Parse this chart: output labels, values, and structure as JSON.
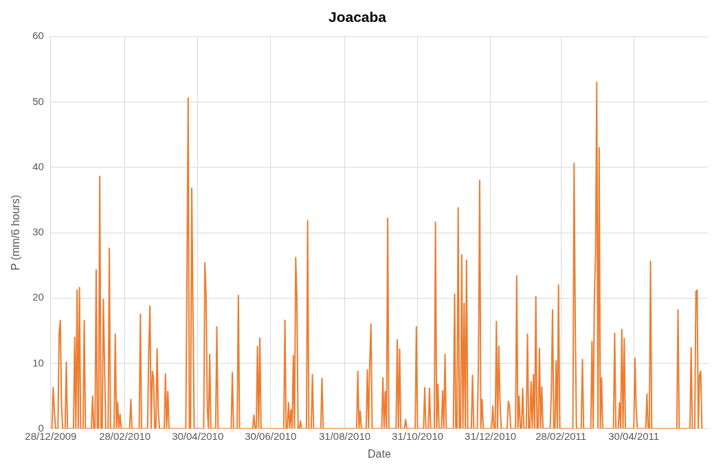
{
  "chart_data": {
    "type": "line",
    "title": "Joacaba",
    "xlabel": "Date",
    "ylabel": "P (mm/6 hours)",
    "xlim": [
      "2009-12-28",
      "2011-07-01"
    ],
    "xticks": [
      {
        "value": "2009-12-28",
        "label": "28/12/2009"
      },
      {
        "value": "2010-02-28",
        "label": "28/02/2010"
      },
      {
        "value": "2010-04-30",
        "label": "30/04/2010"
      },
      {
        "value": "2010-06-30",
        "label": "30/06/2010"
      },
      {
        "value": "2010-08-31",
        "label": "31/08/2010"
      },
      {
        "value": "2010-10-31",
        "label": "31/10/2010"
      },
      {
        "value": "2010-12-31",
        "label": "31/12/2010"
      },
      {
        "value": "2011-02-28",
        "label": "28/02/2011"
      },
      {
        "value": "2011-04-30",
        "label": "30/04/2011"
      }
    ],
    "ylim": [
      0,
      60
    ],
    "yticks": [
      0,
      10,
      20,
      30,
      40,
      50,
      60
    ],
    "grid": true,
    "legend": false,
    "marker": "none",
    "line_style": "solid",
    "series": [
      {
        "color": "#ed7d31",
        "x": [
          "2009-12-28",
          "2009-12-29",
          "2009-12-30",
          "2009-12-31",
          "2010-01-01",
          "2010-01-03",
          "2010-01-04",
          "2010-01-05",
          "2010-01-06",
          "2010-01-07",
          "2010-01-09",
          "2010-01-10",
          "2010-01-11",
          "2010-01-16",
          "2010-01-17",
          "2010-01-18",
          "2010-01-19",
          "2010-01-20",
          "2010-01-21",
          "2010-01-22",
          "2010-01-24",
          "2010-01-25",
          "2010-01-26",
          "2010-01-31",
          "2010-02-01",
          "2010-02-02",
          "2010-02-03",
          "2010-02-04",
          "2010-02-05",
          "2010-02-06",
          "2010-02-07",
          "2010-02-08",
          "2010-02-09",
          "2010-02-10",
          "2010-02-11",
          "2010-02-12",
          "2010-02-14",
          "2010-02-15",
          "2010-02-16",
          "2010-02-19",
          "2010-02-20",
          "2010-02-21",
          "2010-02-22",
          "2010-02-23",
          "2010-02-24",
          "2010-02-25",
          "2010-03-04",
          "2010-03-05",
          "2010-03-06",
          "2010-03-12",
          "2010-03-13",
          "2010-03-14",
          "2010-03-19",
          "2010-03-20",
          "2010-03-21",
          "2010-03-22",
          "2010-03-23",
          "2010-03-24",
          "2010-03-25",
          "2010-03-26",
          "2010-03-27",
          "2010-03-28",
          "2010-03-29",
          "2010-04-02",
          "2010-04-03",
          "2010-04-04",
          "2010-04-05",
          "2010-04-06",
          "2010-04-20",
          "2010-04-21",
          "2010-04-22",
          "2010-04-23",
          "2010-04-24",
          "2010-04-25",
          "2010-04-26",
          "2010-04-27",
          "2010-05-05",
          "2010-05-06",
          "2010-05-07",
          "2010-05-08",
          "2010-05-09",
          "2010-05-10",
          "2010-05-11",
          "2010-05-15",
          "2010-05-16",
          "2010-05-17",
          "2010-05-28",
          "2010-05-29",
          "2010-05-30",
          "2010-06-02",
          "2010-06-03",
          "2010-06-04",
          "2010-06-15",
          "2010-06-16",
          "2010-06-17",
          "2010-06-18",
          "2010-06-19",
          "2010-06-20",
          "2010-06-21",
          "2010-06-22",
          "2010-07-11",
          "2010-07-12",
          "2010-07-13",
          "2010-07-14",
          "2010-07-15",
          "2010-07-16",
          "2010-07-17",
          "2010-07-18",
          "2010-07-19",
          "2010-07-20",
          "2010-07-21",
          "2010-07-22",
          "2010-07-23",
          "2010-07-24",
          "2010-07-25",
          "2010-07-26",
          "2010-07-30",
          "2010-07-31",
          "2010-08-01",
          "2010-08-03",
          "2010-08-04",
          "2010-08-05",
          "2010-08-11",
          "2010-08-12",
          "2010-08-13",
          "2010-09-10",
          "2010-09-11",
          "2010-09-12",
          "2010-09-13",
          "2010-09-14",
          "2010-09-18",
          "2010-09-19",
          "2010-09-20",
          "2010-09-21",
          "2010-09-22",
          "2010-09-23",
          "2010-10-01",
          "2010-10-02",
          "2010-10-03",
          "2010-10-04",
          "2010-10-05",
          "2010-10-06",
          "2010-10-07",
          "2010-10-13",
          "2010-10-14",
          "2010-10-15",
          "2010-10-16",
          "2010-10-17",
          "2010-10-20",
          "2010-10-21",
          "2010-10-22",
          "2010-10-29",
          "2010-10-30",
          "2010-10-31",
          "2010-11-05",
          "2010-11-06",
          "2010-11-07",
          "2010-11-09",
          "2010-11-10",
          "2010-11-11",
          "2010-11-14",
          "2010-11-15",
          "2010-11-16",
          "2010-11-17",
          "2010-11-18",
          "2010-11-20",
          "2010-11-21",
          "2010-11-22",
          "2010-11-23",
          "2010-11-24",
          "2010-11-30",
          "2010-12-01",
          "2010-12-02",
          "2010-12-03",
          "2010-12-04",
          "2010-12-05",
          "2010-12-06",
          "2010-12-07",
          "2010-12-08",
          "2010-12-09",
          "2010-12-10",
          "2010-12-11",
          "2010-12-12",
          "2010-12-15",
          "2010-12-16",
          "2010-12-17",
          "2010-12-20",
          "2010-12-21",
          "2010-12-22",
          "2010-12-23",
          "2010-12-24",
          "2010-12-25",
          "2011-01-01",
          "2011-01-02",
          "2011-01-03",
          "2011-01-04",
          "2011-01-05",
          "2011-01-06",
          "2011-01-07",
          "2011-01-08",
          "2011-01-09",
          "2011-01-14",
          "2011-01-15",
          "2011-01-16",
          "2011-01-17",
          "2011-01-21",
          "2011-01-22",
          "2011-01-23",
          "2011-01-24",
          "2011-01-25",
          "2011-01-26",
          "2011-01-27",
          "2011-01-28",
          "2011-01-30",
          "2011-01-31",
          "2011-02-01",
          "2011-02-02",
          "2011-02-03",
          "2011-02-04",
          "2011-02-05",
          "2011-02-06",
          "2011-02-07",
          "2011-02-08",
          "2011-02-09",
          "2011-02-10",
          "2011-02-11",
          "2011-02-12",
          "2011-02-13",
          "2011-02-19",
          "2011-02-20",
          "2011-02-21",
          "2011-02-22",
          "2011-02-23",
          "2011-02-24",
          "2011-02-25",
          "2011-02-26",
          "2011-02-27",
          "2011-03-10",
          "2011-03-11",
          "2011-03-12",
          "2011-03-13",
          "2011-03-17",
          "2011-03-18",
          "2011-03-19",
          "2011-03-25",
          "2011-03-26",
          "2011-03-27",
          "2011-03-28",
          "2011-03-29",
          "2011-03-30",
          "2011-03-31",
          "2011-04-01",
          "2011-04-02",
          "2011-04-03",
          "2011-04-04",
          "2011-04-13",
          "2011-04-14",
          "2011-04-15",
          "2011-04-17",
          "2011-04-18",
          "2011-04-19",
          "2011-04-20",
          "2011-04-21",
          "2011-04-22",
          "2011-04-23",
          "2011-04-30",
          "2011-05-01",
          "2011-05-02",
          "2011-05-03",
          "2011-05-10",
          "2011-05-11",
          "2011-05-12",
          "2011-05-13",
          "2011-05-14",
          "2011-05-15",
          "2011-06-05",
          "2011-06-06",
          "2011-06-07",
          "2011-06-16",
          "2011-06-17",
          "2011-06-18",
          "2011-06-20",
          "2011-06-21",
          "2011-06-22",
          "2011-06-23",
          "2011-06-24",
          "2011-06-25",
          "2011-06-26"
        ],
        "values": [
          0,
          0,
          6.3,
          2.7,
          0,
          0,
          14.6,
          16.6,
          3.3,
          0,
          0,
          10.2,
          0,
          0,
          14,
          0,
          21.2,
          0,
          21.6,
          0,
          0,
          16.6,
          0,
          0,
          5,
          0,
          0,
          24.3,
          0,
          0,
          38.6,
          0,
          0,
          19.8,
          9.8,
          0,
          0,
          27.6,
          0,
          0,
          14.5,
          0,
          4,
          0,
          2.2,
          0,
          0,
          4.5,
          0,
          0,
          17.5,
          0,
          0,
          11.8,
          18.8,
          0,
          8.8,
          7.8,
          0,
          0,
          12.2,
          2.7,
          0,
          0,
          8.4,
          0,
          5.7,
          0,
          0,
          23,
          50.6,
          0,
          0,
          36.8,
          18.4,
          0,
          0,
          25.4,
          20.4,
          3.2,
          0,
          11.4,
          0,
          0,
          15.6,
          0,
          0,
          8.6,
          0,
          0,
          20.4,
          0,
          0,
          2.1,
          0,
          0,
          12.6,
          0,
          13.9,
          0,
          0,
          16.6,
          0,
          0,
          4,
          0,
          2.9,
          0,
          11.2,
          0,
          26.2,
          20,
          0,
          0,
          1.2,
          0,
          0,
          31.8,
          0,
          0,
          8.3,
          0,
          0,
          7.7,
          0,
          0,
          8.8,
          0,
          2.7,
          0,
          0,
          9,
          0,
          10.1,
          16,
          0,
          0,
          7.8,
          0,
          5.7,
          0,
          32.2,
          0,
          0,
          13.6,
          0,
          12.2,
          0,
          0,
          1.4,
          0,
          0,
          15.6,
          0,
          0,
          6.3,
          0,
          0,
          6.2,
          0,
          0,
          31.6,
          0,
          6.8,
          0,
          0,
          5.8,
          0,
          11.4,
          0,
          0,
          20.6,
          0,
          0,
          33.8,
          0,
          0,
          26.6,
          0,
          19.2,
          0,
          25.8,
          0,
          0,
          8.2,
          0,
          0,
          10.6,
          38,
          0,
          4.5,
          0,
          0,
          3.5,
          0,
          0,
          16.4,
          0,
          12.6,
          4.2,
          0,
          0,
          4.2,
          3.4,
          0,
          0,
          23.4,
          0,
          5,
          0,
          0,
          6.2,
          0,
          0,
          14.5,
          0,
          0,
          7.2,
          0,
          8.3,
          0,
          20.2,
          0,
          0,
          12.3,
          0,
          6.4,
          0,
          0,
          5.7,
          18.2,
          0,
          0,
          10.4,
          0,
          22,
          0,
          0,
          40.6,
          15.8,
          0,
          0,
          10.6,
          0,
          0,
          13.4,
          0,
          20,
          26.8,
          53,
          0,
          43,
          0,
          7.8,
          0,
          0,
          14.6,
          0,
          0,
          4,
          0,
          15.2,
          0,
          13.8,
          0,
          0,
          10.8,
          3,
          0,
          0,
          5.3,
          0,
          0,
          25.6,
          0,
          0,
          18.2,
          0,
          0,
          12.4,
          0,
          0,
          21,
          21.2,
          0,
          8.2,
          8.8,
          0
        ]
      }
    ]
  }
}
